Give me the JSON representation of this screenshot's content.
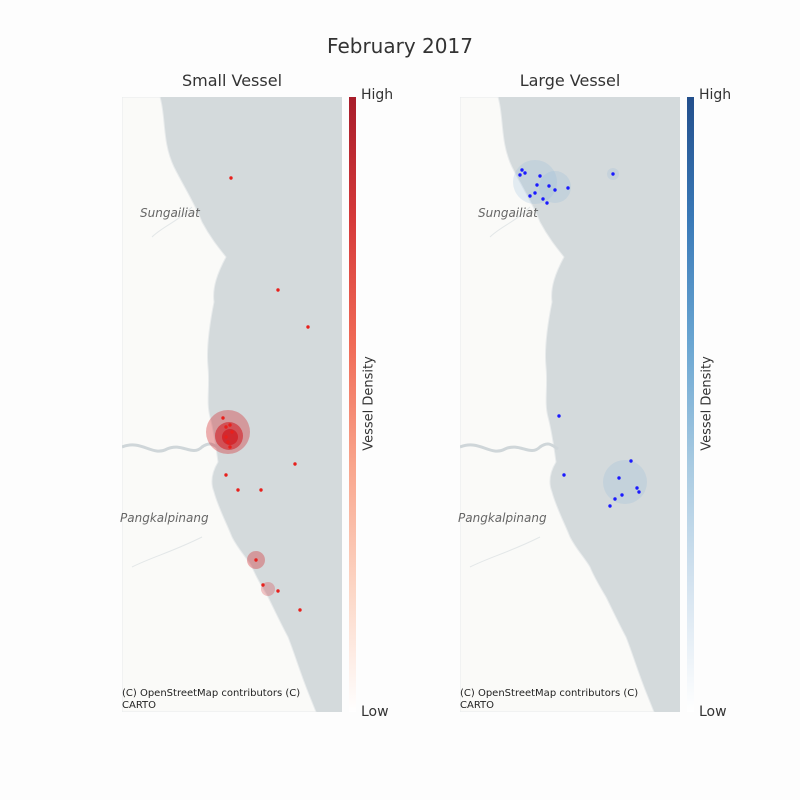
{
  "figure": {
    "title": "February 2017"
  },
  "panels": [
    {
      "title": "Small Vessel",
      "colorbar": {
        "label": "Vessel Density",
        "high": "High",
        "low": "Low",
        "colors": [
          "#ffffff",
          "#fcd6c5",
          "#f9a58c",
          "#f06a56",
          "#d63a3a",
          "#a81d2b"
        ]
      },
      "cities": [
        "Sungailiat",
        "Pangkalpinang"
      ],
      "credit": "(C) OpenStreetMap contributors (C) CARTO",
      "point_color": "#e8201c"
    },
    {
      "title": "Large Vessel",
      "colorbar": {
        "label": "Vessel Density",
        "high": "High",
        "low": "Low",
        "colors": [
          "#ffffff",
          "#d6e4f0",
          "#a9cbe2",
          "#6aa6d2",
          "#3a7ab8",
          "#234f8c"
        ]
      },
      "cities": [
        "Sungailiat",
        "Pangkalpinang"
      ],
      "credit": "(C) OpenStreetMap contributors (C) CARTO",
      "point_color": "#1a1aff"
    }
  ]
}
